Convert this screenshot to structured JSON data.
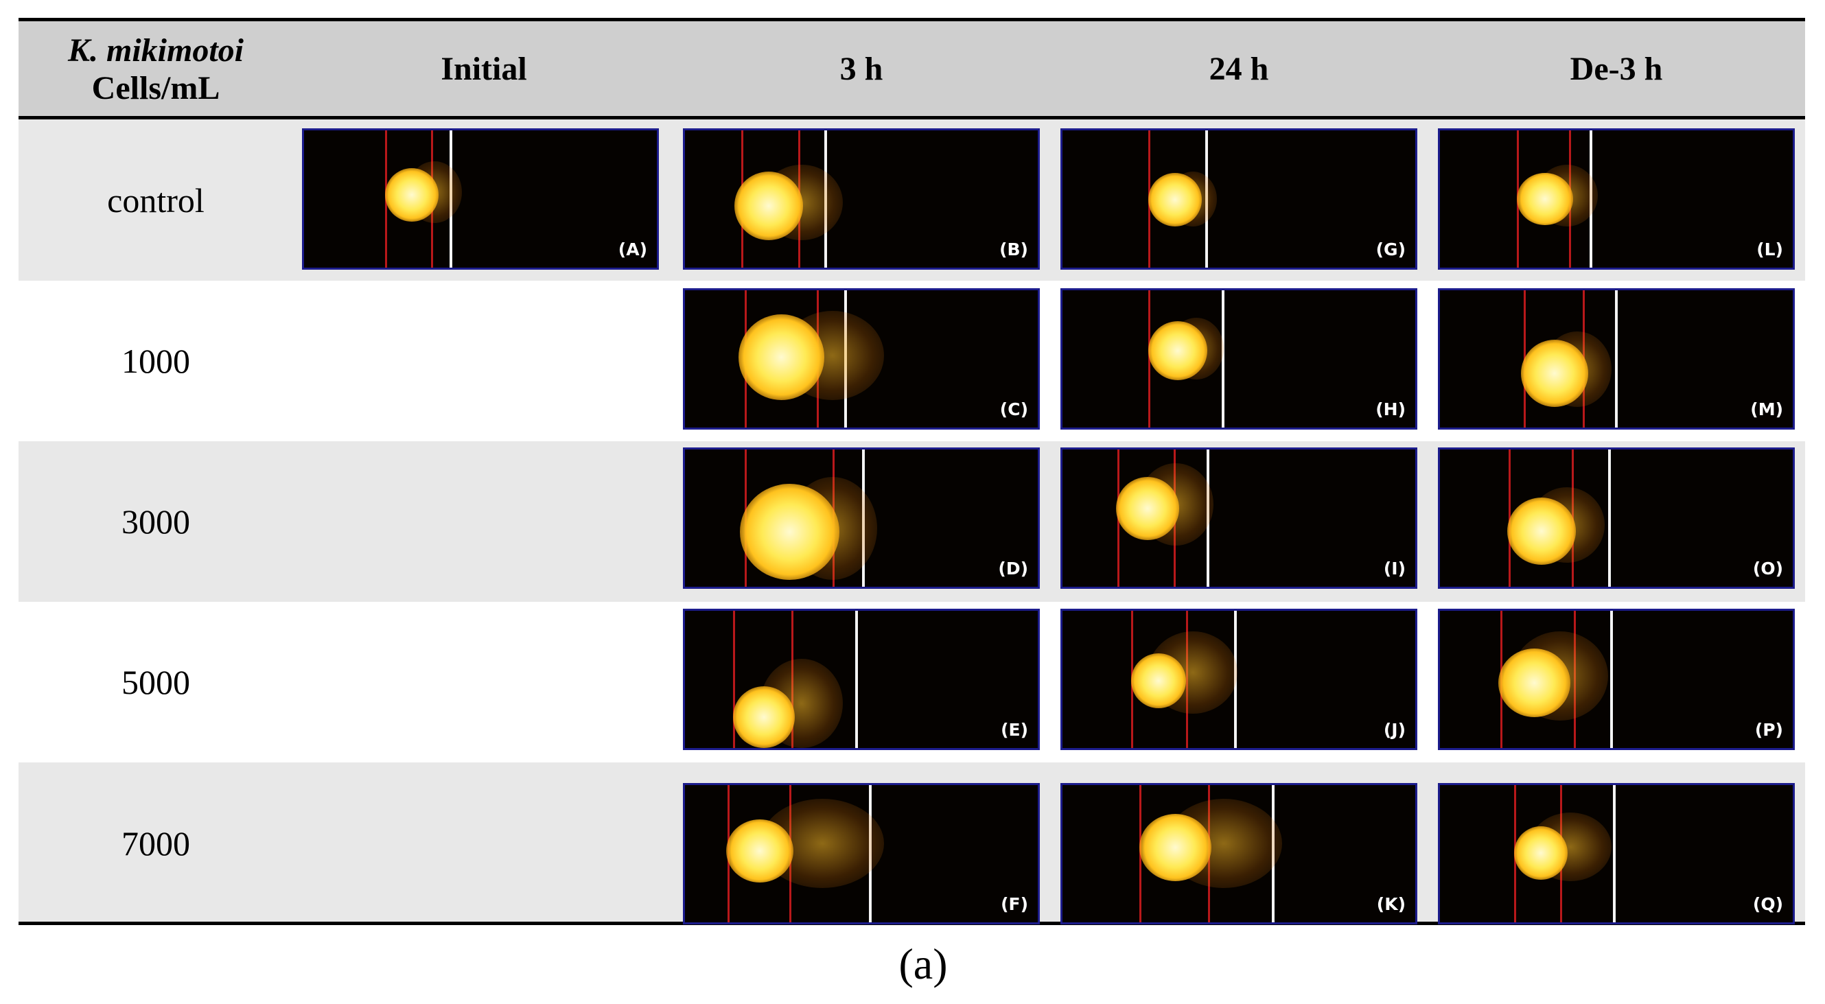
{
  "table": {
    "header": {
      "species": "K. mikimotoi",
      "unit": "Cells/mL",
      "columns": [
        "Initial",
        "3 h",
        "24 h",
        "De-3 h"
      ]
    },
    "rows": [
      {
        "label": "control",
        "panels": [
          "(A)",
          "(B)",
          "(G)",
          "(L)"
        ]
      },
      {
        "label": "1000",
        "panels": [
          "",
          "(C)",
          "(H)",
          "(M)"
        ]
      },
      {
        "label": "3000",
        "panels": [
          "",
          "(D)",
          "(I)",
          "(O)"
        ]
      },
      {
        "label": "5000",
        "panels": [
          "",
          "(E)",
          "(J)",
          "(P)"
        ]
      },
      {
        "label": "7000",
        "panels": [
          "",
          "(F)",
          "(K)",
          "(Q)"
        ]
      }
    ]
  },
  "caption": "(a)"
}
